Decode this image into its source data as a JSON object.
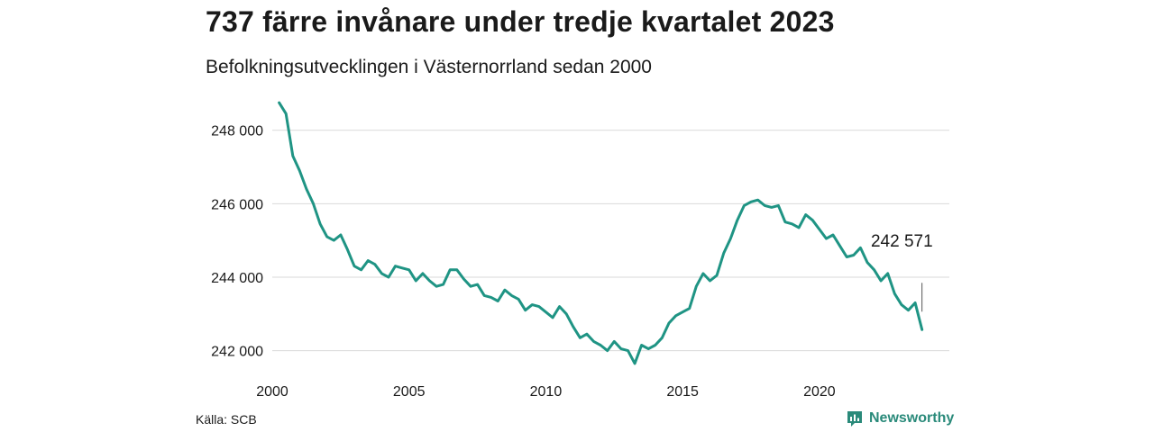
{
  "header": {
    "title": "737 färre invånare under tredje kvartalet 2023",
    "subtitle": "Befolkningsutvecklingen i Västernorrland sedan 2000"
  },
  "footer": {
    "source": "Källa: SCB",
    "brand": "Newsworthy",
    "brand_icon": "newsworthy-logo-icon"
  },
  "colors": {
    "line": "#1f9484",
    "grid": "#d9d9d9",
    "brand": "#2a8a7a"
  },
  "chart_data": {
    "type": "line",
    "title": "737 färre invånare under tredje kvartalet 2023",
    "subtitle": "Befolkningsutvecklingen i Västernorrland sedan 2000",
    "xlabel": "",
    "ylabel": "",
    "xlim": [
      2000,
      2024.75
    ],
    "ylim": [
      241500,
      248850
    ],
    "grid": true,
    "legend": "none",
    "x_ticks": [
      2000,
      2005,
      2010,
      2015,
      2020
    ],
    "x_tick_labels": [
      "2000",
      "2005",
      "2010",
      "2015",
      "2020"
    ],
    "y_ticks": [
      242000,
      244000,
      246000,
      248000
    ],
    "y_tick_labels": [
      "242 000",
      "244 000",
      "246 000",
      "248 000"
    ],
    "annotation": {
      "label": "242 571",
      "value": 242571
    },
    "series": [
      {
        "name": "",
        "x": [
          2000.25,
          2000.5,
          2000.75,
          2001.0,
          2001.25,
          2001.5,
          2001.75,
          2002.0,
          2002.25,
          2002.5,
          2002.75,
          2003.0,
          2003.25,
          2003.5,
          2003.75,
          2004.0,
          2004.25,
          2004.5,
          2004.75,
          2005.0,
          2005.25,
          2005.5,
          2005.75,
          2006.0,
          2006.25,
          2006.5,
          2006.75,
          2007.0,
          2007.25,
          2007.5,
          2007.75,
          2008.0,
          2008.25,
          2008.5,
          2008.75,
          2009.0,
          2009.25,
          2009.5,
          2009.75,
          2010.0,
          2010.25,
          2010.5,
          2010.75,
          2011.0,
          2011.25,
          2011.5,
          2011.75,
          2012.0,
          2012.25,
          2012.5,
          2012.75,
          2013.0,
          2013.25,
          2013.5,
          2013.75,
          2014.0,
          2014.25,
          2014.5,
          2014.75,
          2015.0,
          2015.25,
          2015.5,
          2015.75,
          2016.0,
          2016.25,
          2016.5,
          2016.75,
          2017.0,
          2017.25,
          2017.5,
          2017.75,
          2018.0,
          2018.25,
          2018.5,
          2018.75,
          2019.0,
          2019.25,
          2019.5,
          2019.75,
          2020.0,
          2020.25,
          2020.5,
          2020.75,
          2021.0,
          2021.25,
          2021.5,
          2021.75,
          2022.0,
          2022.25,
          2022.5,
          2022.75,
          2023.0,
          2023.25,
          2023.5,
          2023.75
        ],
        "values": [
          248750,
          248450,
          247300,
          246900,
          246400,
          246000,
          245450,
          245100,
          245000,
          245150,
          244750,
          244300,
          244200,
          244450,
          244350,
          244100,
          244000,
          244300,
          244250,
          244200,
          243900,
          244100,
          243900,
          243750,
          243800,
          244200,
          244200,
          243950,
          243750,
          243800,
          243500,
          243450,
          243350,
          243650,
          243500,
          243400,
          243100,
          243250,
          243200,
          243050,
          242900,
          243200,
          243000,
          242650,
          242350,
          242450,
          242250,
          242150,
          242000,
          242250,
          242050,
          242000,
          241650,
          242150,
          242050,
          242150,
          242350,
          242750,
          242950,
          243050,
          243150,
          243750,
          244100,
          243900,
          244050,
          244650,
          245050,
          245550,
          245950,
          246050,
          246100,
          245950,
          245900,
          245950,
          245500,
          245450,
          245350,
          245700,
          245550,
          245300,
          245050,
          245150,
          244850,
          244550,
          244600,
          244800,
          244400,
          244200,
          243900,
          244100,
          243550,
          243250,
          243100,
          243300,
          242571
        ]
      }
    ]
  }
}
